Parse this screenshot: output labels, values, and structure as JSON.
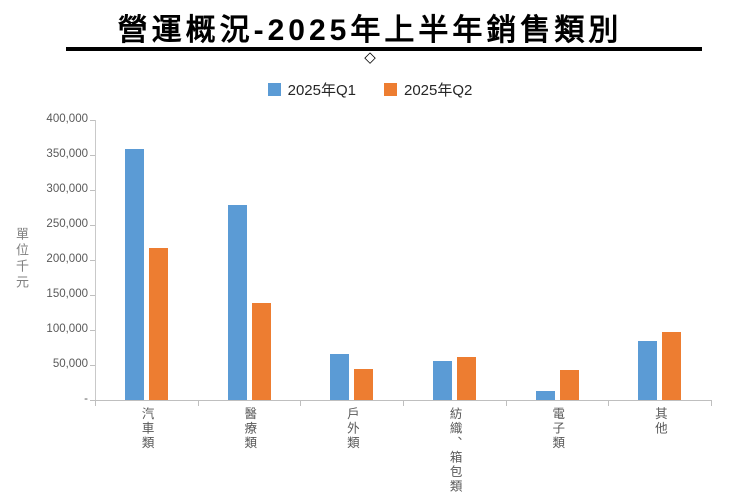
{
  "header": {
    "title": "營運概況-2025年上半年銷售類別",
    "diamond_icon": "◇"
  },
  "chart_data": {
    "type": "bar",
    "title": "營運概況-2025年上半年銷售類別",
    "ylabel": "單位千元",
    "categories": [
      "汽車類",
      "醫療類",
      "戶外類",
      "紡織、箱包類",
      "電子類",
      "其他"
    ],
    "series": [
      {
        "name": "2025年Q1",
        "color": "#5B9BD5",
        "values": [
          358000,
          278000,
          66000,
          56000,
          13000,
          85000
        ]
      },
      {
        "name": "2025年Q2",
        "color": "#ED7D31",
        "values": [
          217000,
          139000,
          44000,
          61000,
          43000,
          97000
        ]
      }
    ],
    "ylim": [
      0,
      400000
    ],
    "yticks": [
      "400,000",
      "350,000",
      "300,000",
      "250,000",
      "200,000",
      "150,000",
      "100,000",
      "50,000",
      "-"
    ],
    "grid": false,
    "legend_position": "top"
  }
}
